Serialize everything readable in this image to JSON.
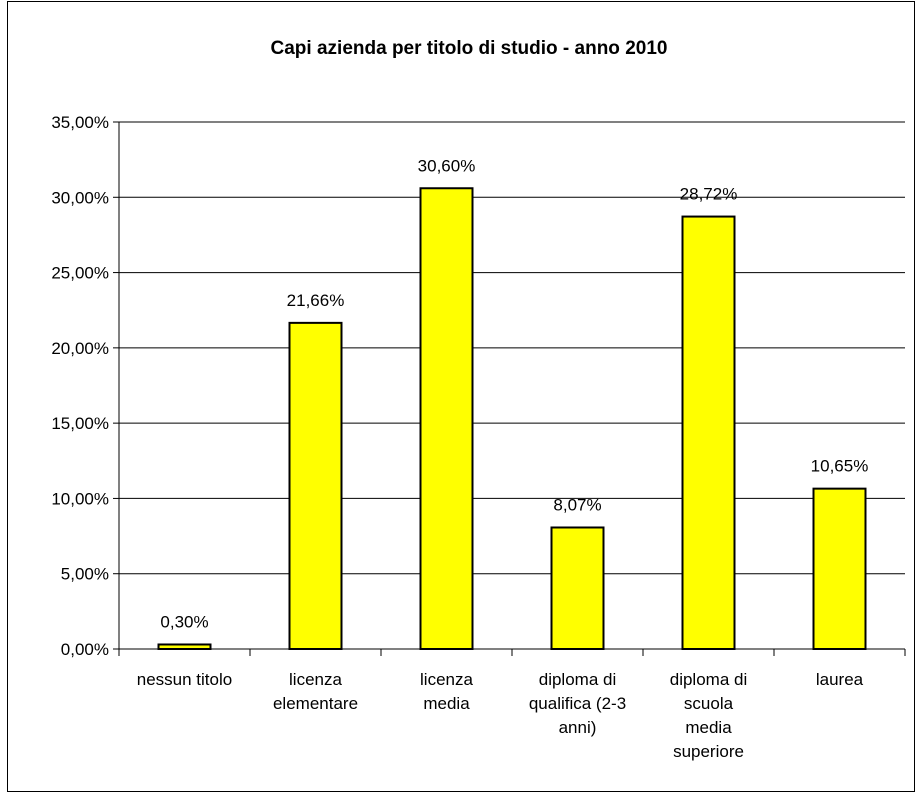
{
  "chart_data": {
    "type": "bar",
    "title": "Capi azienda per titolo di studio - anno 2010",
    "categories": [
      [
        "nessun titolo"
      ],
      [
        "licenza",
        "elementare"
      ],
      [
        "licenza",
        "media"
      ],
      [
        "diploma di",
        "qualifica (2-3",
        "anni)"
      ],
      [
        "diploma di",
        "scuola",
        "media",
        "superiore"
      ],
      [
        "laurea"
      ]
    ],
    "values": [
      0.3,
      21.66,
      30.6,
      8.07,
      28.72,
      10.65
    ],
    "data_labels": [
      "0,30%",
      "21,66%",
      "30,60%",
      "8,07%",
      "28,72%",
      "10,65%"
    ],
    "ylim": [
      0,
      35
    ],
    "yticks": [
      0,
      5,
      10,
      15,
      20,
      25,
      30,
      35
    ],
    "ytick_labels": [
      "0,00%",
      "5,00%",
      "10,00%",
      "15,00%",
      "20,00%",
      "25,00%",
      "30,00%",
      "35,00%"
    ],
    "xlabel": "",
    "ylabel": "",
    "grid": true,
    "legend": false,
    "colors": {
      "bar_fill": "#ffff00",
      "bar_stroke": "#000000",
      "gridline": "#000000"
    }
  }
}
